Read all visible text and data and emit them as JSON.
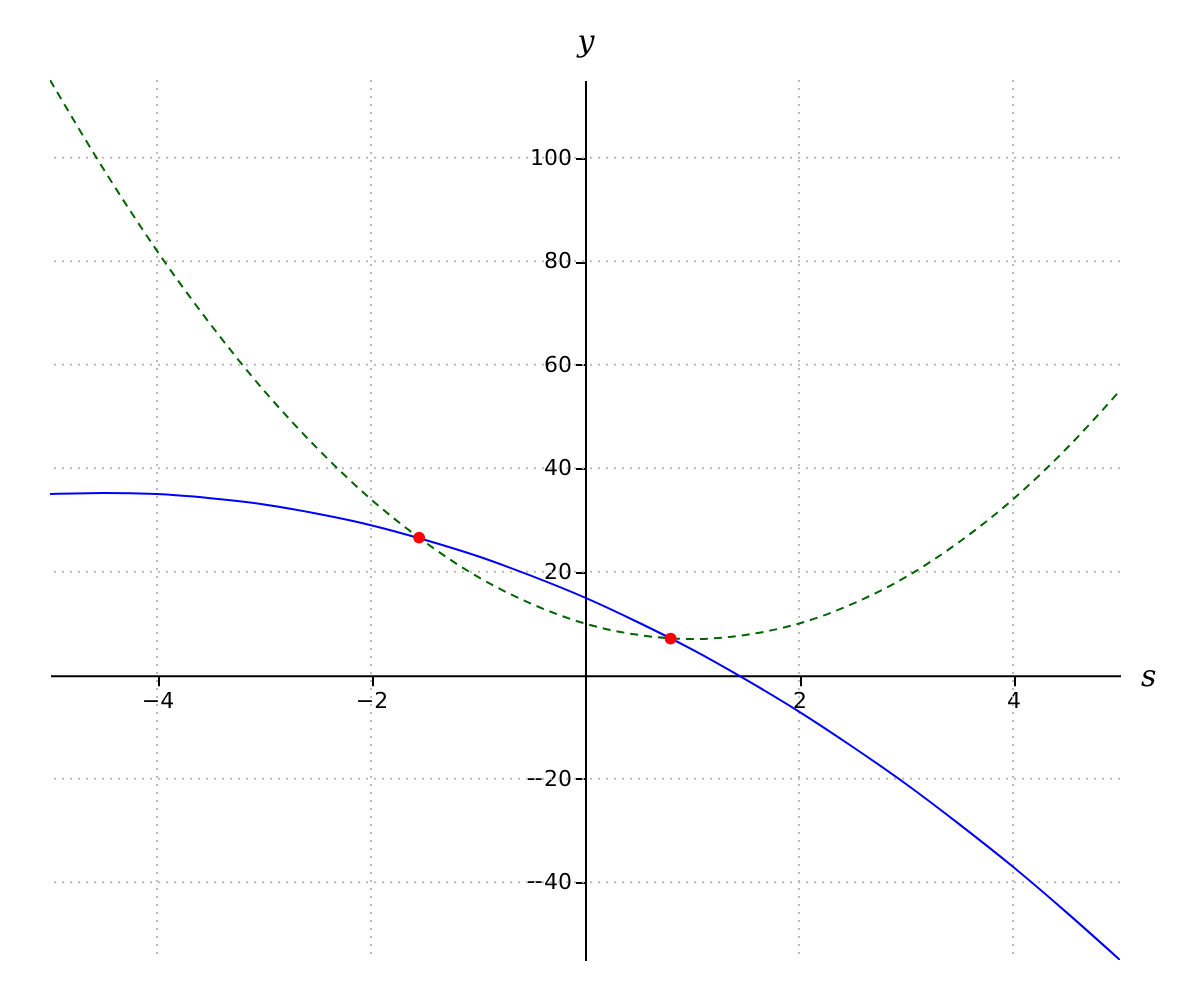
{
  "chart_data": {
    "type": "line",
    "xlabel": "s",
    "ylabel": "y",
    "xlim": [
      -5,
      5
    ],
    "ylim": [
      -55,
      115
    ],
    "xticks": [
      -4,
      -2,
      2,
      4
    ],
    "yticks": [
      -40,
      -20,
      20,
      40,
      60,
      80,
      100
    ],
    "grid": true,
    "marker": "none",
    "series": [
      {
        "color": "#0000ff",
        "line_style": "solid",
        "x": [
          -5,
          -4.5,
          -4,
          -3.5,
          -3,
          -2.5,
          -2,
          -1.5,
          -1,
          -0.5,
          0,
          0.5,
          1,
          1.5,
          2,
          2.5,
          3,
          3.5,
          4,
          4.5,
          5
        ],
        "values": [
          35,
          35.2,
          35,
          34.2,
          33,
          31.2,
          29,
          26.2,
          23,
          19.2,
          15,
          10.2,
          5,
          -0.8,
          -7,
          -13.8,
          -21,
          -28.8,
          -37,
          -45.8,
          -55
        ]
      },
      {
        "color": "#006400",
        "line_style": "dashed",
        "x": [
          -5,
          -4.5,
          -4,
          -3.5,
          -3,
          -2.5,
          -2,
          -1.5,
          -1,
          -0.5,
          0,
          0.5,
          1,
          1.5,
          2,
          2.5,
          3,
          3.5,
          4,
          4.5,
          5
        ],
        "values": [
          115,
          97.8,
          82,
          67.8,
          55,
          43.8,
          34,
          25.8,
          19,
          13.8,
          10,
          7.8,
          7,
          7.8,
          10,
          13.8,
          19,
          25.8,
          34,
          43.8,
          55
        ]
      },
      {
        "type": "scatter",
        "marker": "circle",
        "color": "#ff0000",
        "x": [
          -1.55,
          0.8
        ],
        "values": [
          26.6,
          7.1
        ]
      }
    ]
  }
}
